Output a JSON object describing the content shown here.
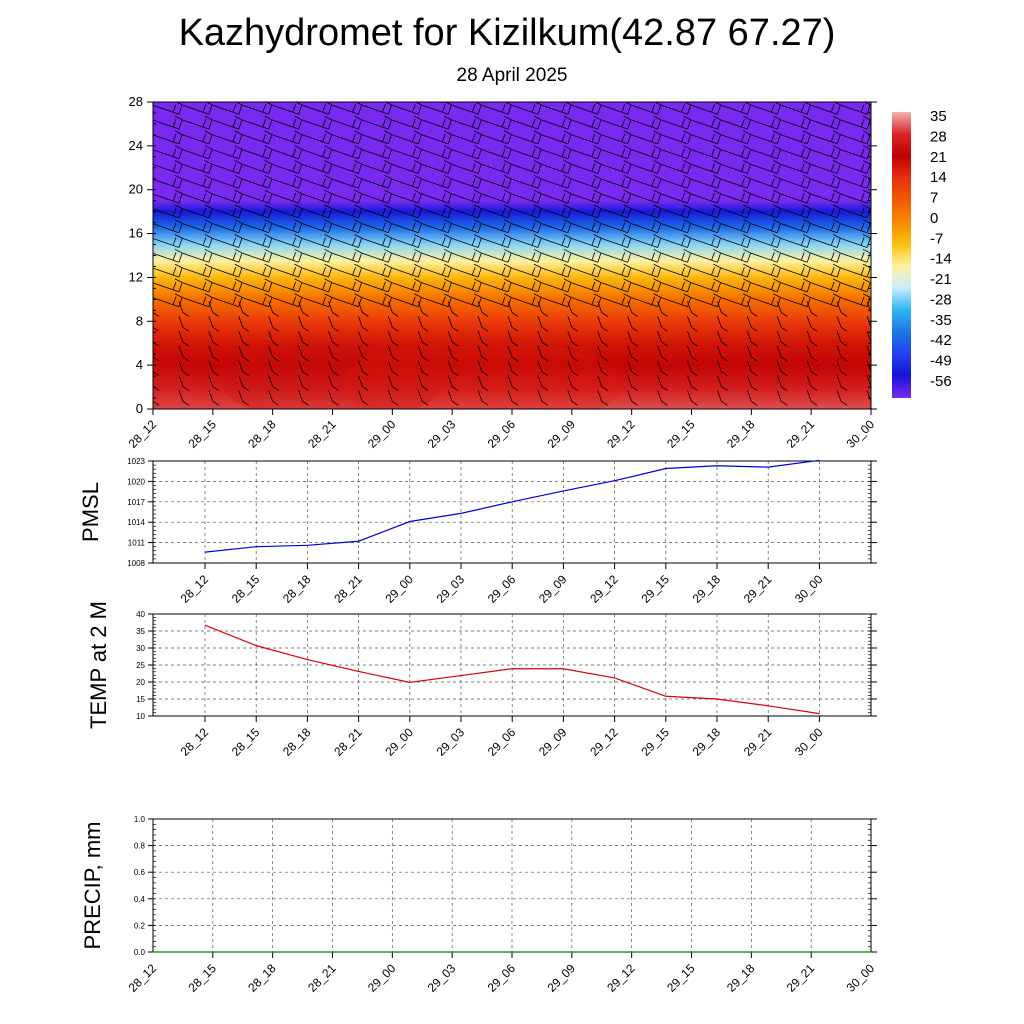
{
  "title": "Kazhydromet for Kizilkum(42.87 67.27)",
  "subtitle": "28 April 2025",
  "chart_data": [
    {
      "type": "heatmap",
      "x_ticks": [
        "28_12",
        "28_15",
        "28_18",
        "28_21",
        "29_00",
        "29_03",
        "29_06",
        "29_09",
        "29_12",
        "29_15",
        "29_18",
        "29_21",
        "30_00"
      ],
      "y_ticks": [
        0,
        4,
        8,
        12,
        16,
        20,
        24,
        28
      ],
      "ylim": [
        0,
        28
      ],
      "colorbar": {
        "labels": [
          "35",
          "28",
          "21",
          "14",
          "7",
          "0",
          "-7",
          "-14",
          "-21",
          "-28",
          "-35",
          "-42",
          "-49",
          "-56"
        ],
        "colors": [
          "#f2b3b3",
          "#d92626",
          "#c00000",
          "#e83010",
          "#f25a00",
          "#f88a00",
          "#fbbf10",
          "#fff2a0",
          "#c8ecff",
          "#30b5f0",
          "#1c76e6",
          "#2540f0",
          "#1414d8",
          "#7a2af0"
        ]
      },
      "level_temps": [
        {
          "z": 0,
          "t": 30
        },
        {
          "z": 2,
          "t": 26
        },
        {
          "z": 4,
          "t": 22
        },
        {
          "z": 6,
          "t": 18
        },
        {
          "z": 8,
          "t": 12
        },
        {
          "z": 10,
          "t": 4
        },
        {
          "z": 12,
          "t": -6
        },
        {
          "z": 13.5,
          "t": -14
        },
        {
          "z": 15,
          "t": -24
        },
        {
          "z": 16.5,
          "t": -36
        },
        {
          "z": 18,
          "t": -48
        },
        {
          "z": 19,
          "t": -56
        },
        {
          "z": 28,
          "t": -58
        }
      ],
      "warm_core": {
        "x": 0,
        "y": 0.5,
        "t": 35
      }
    },
    {
      "type": "line",
      "ylabel": "PMSL",
      "categories": [
        "28_12",
        "28_15",
        "28_18",
        "28_21",
        "29_00",
        "29_03",
        "29_06",
        "29_09",
        "29_12",
        "29_15",
        "29_18",
        "29_21",
        "30_00"
      ],
      "y_ticks": [
        1008,
        1011,
        1014,
        1017,
        1020,
        1023
      ],
      "ylim": [
        1008,
        1023
      ],
      "line_color": "#0000dd",
      "values": [
        1009.6,
        1010.4,
        1010.6,
        1011.2,
        1014.1,
        1015.3,
        1017.0,
        1018.6,
        1020.1,
        1021.9,
        1022.3,
        1022.1,
        1023.1
      ]
    },
    {
      "type": "line",
      "ylabel": "TEMP at 2 M",
      "categories": [
        "28_12",
        "28_15",
        "28_18",
        "28_21",
        "29_00",
        "29_03",
        "29_06",
        "29_09",
        "29_12",
        "29_15",
        "29_18",
        "29_21",
        "30_00"
      ],
      "y_ticks": [
        10,
        15,
        20,
        25,
        30,
        35,
        40
      ],
      "ylim": [
        10,
        40
      ],
      "line_color": "#dd0000",
      "values": [
        36.7,
        30.7,
        26.6,
        23.1,
        19.9,
        21.9,
        23.9,
        23.9,
        21.2,
        15.8,
        15.0,
        13.0,
        10.7
      ]
    },
    {
      "type": "line",
      "ylabel": "PRECIP, mm",
      "categories": [
        "28_12",
        "28_15",
        "28_18",
        "28_21",
        "29_00",
        "29_03",
        "29_06",
        "29_09",
        "29_12",
        "29_15",
        "29_18",
        "29_21",
        "30_00"
      ],
      "y_ticks": [
        0.0,
        0.2,
        0.4,
        0.6,
        0.8,
        1.0
      ],
      "y_tick_labels": [
        "0.0",
        "0.2",
        "0.4",
        "0.6",
        "0.8",
        "1.0"
      ],
      "ylim": [
        0,
        1
      ],
      "line_color": "#008000",
      "values": [
        0,
        0,
        0,
        0,
        0,
        0,
        0,
        0,
        0,
        0,
        0,
        0,
        0
      ]
    }
  ]
}
